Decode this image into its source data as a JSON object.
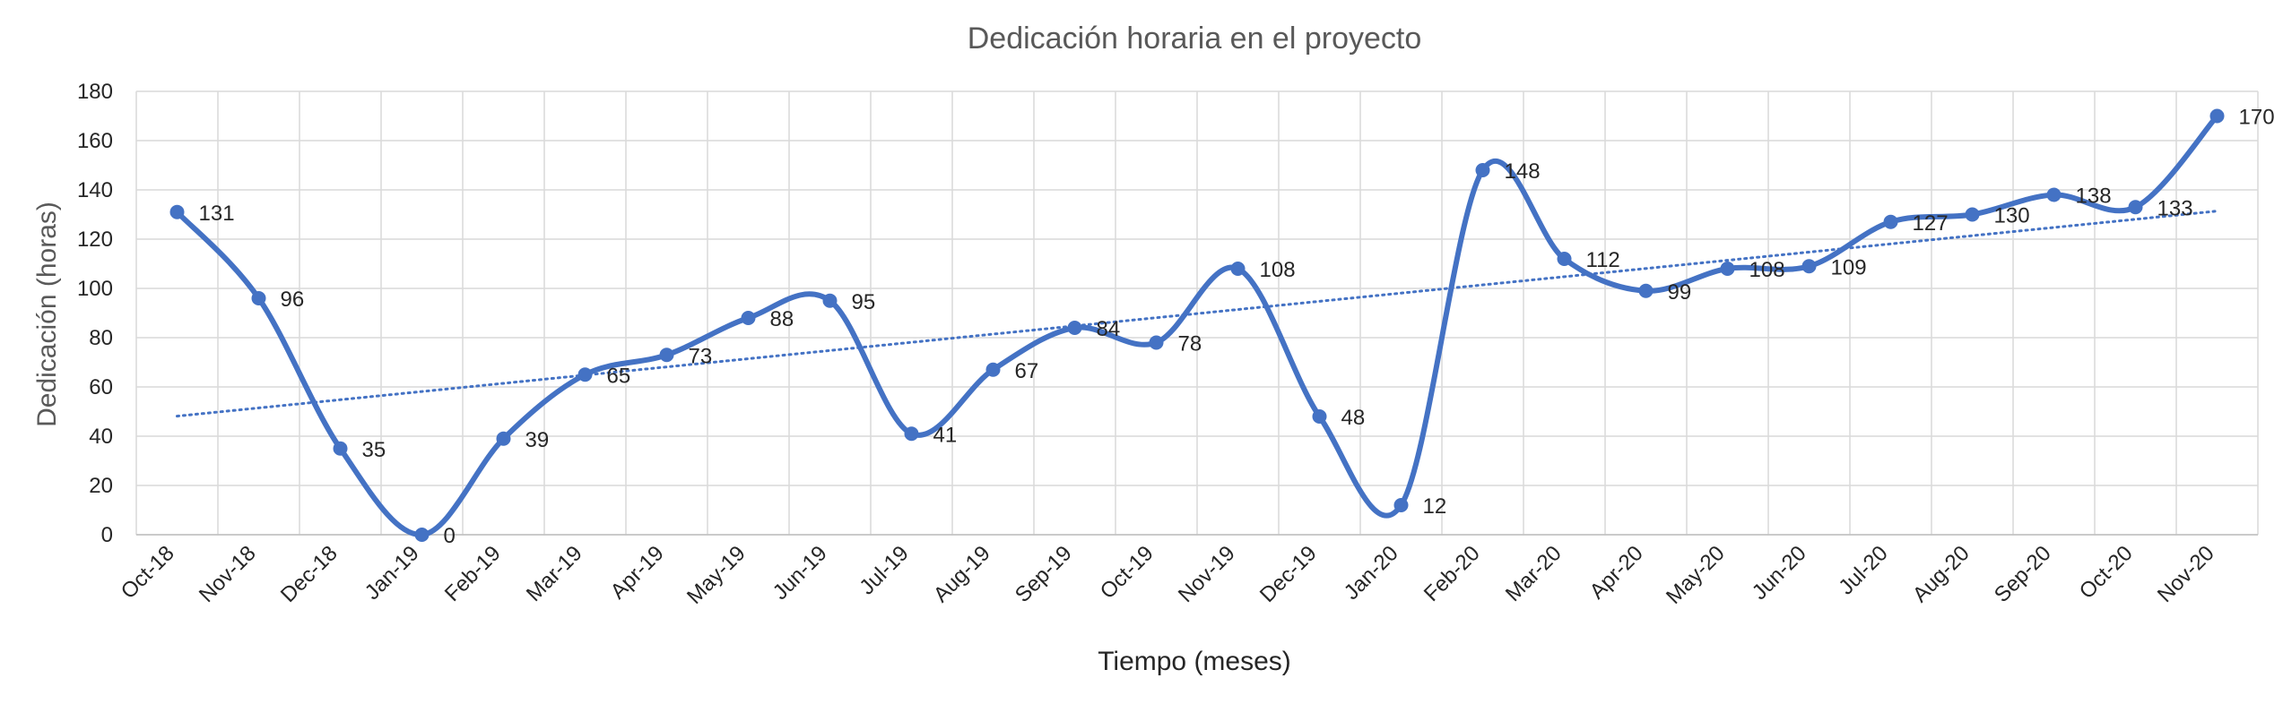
{
  "chart_data": {
    "type": "line",
    "title": "Dedicación horaria en el proyecto",
    "xlabel": "Tiempo (meses)",
    "ylabel": "Dedicación (horas)",
    "ylim": [
      0,
      180
    ],
    "yticks": [
      0,
      20,
      40,
      60,
      80,
      100,
      120,
      140,
      160,
      180
    ],
    "grid": true,
    "smooth": true,
    "trendline": "linear",
    "series_color": "#4472C4",
    "categories": [
      "Oct-18",
      "Nov-18",
      "Dec-18",
      "Jan-19",
      "Feb-19",
      "Mar-19",
      "Apr-19",
      "May-19",
      "Jun-19",
      "Jul-19",
      "Aug-19",
      "Sep-19",
      "Oct-19",
      "Nov-19",
      "Dec-19",
      "Jan-20",
      "Feb-20",
      "Mar-20",
      "Apr-20",
      "May-20",
      "Jun-20",
      "Jul-20",
      "Aug-20",
      "Sep-20",
      "Oct-20",
      "Nov-20"
    ],
    "values": [
      131,
      96,
      35,
      0,
      39,
      65,
      73,
      88,
      95,
      41,
      67,
      84,
      78,
      108,
      48,
      12,
      148,
      112,
      99,
      108,
      109,
      127,
      130,
      138,
      133,
      170
    ]
  }
}
